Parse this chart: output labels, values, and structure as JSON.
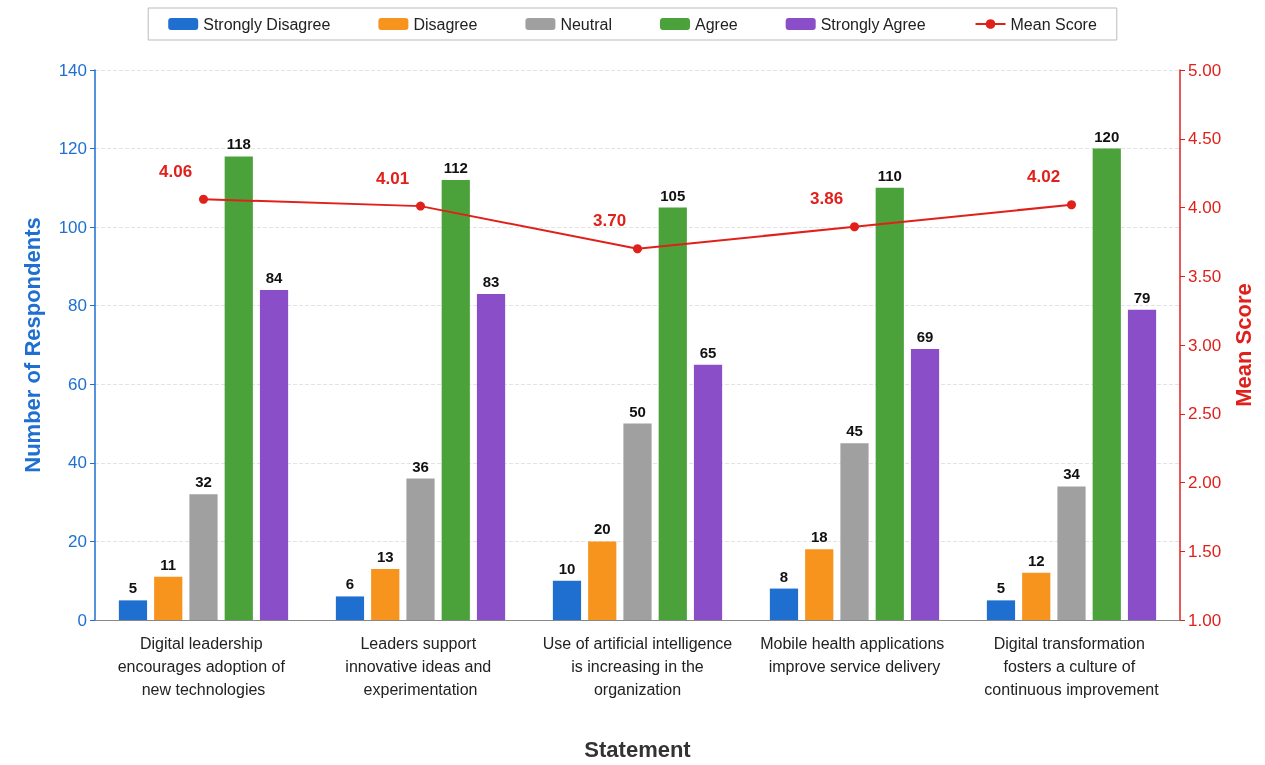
{
  "chart_data": {
    "type": "bar",
    "xlabel": "Statement",
    "ylabel": "Number of Respondents",
    "y2label": "Mean Score",
    "categories": [
      "Digital leadership encourages adoption of new technologies",
      "Leaders support innovative ideas and experimentation",
      "Use of artificial intelligence is increasing in the organization",
      "Mobile health applications improve service delivery",
      "Digital transformation fosters a culture of continuous improvement"
    ],
    "series": [
      {
        "name": "Strongly Disagree",
        "color": "#1f6fd1",
        "values": [
          5,
          6,
          10,
          8,
          5
        ]
      },
      {
        "name": "Disagree",
        "color": "#f7941d",
        "values": [
          11,
          13,
          20,
          18,
          12
        ]
      },
      {
        "name": "Neutral",
        "color": "#a0a0a0",
        "values": [
          32,
          36,
          50,
          45,
          34
        ]
      },
      {
        "name": "Agree",
        "color": "#4ca23a",
        "values": [
          118,
          112,
          105,
          110,
          120
        ]
      },
      {
        "name": "Strongly Agree",
        "color": "#8a4fc8",
        "values": [
          84,
          83,
          65,
          69,
          79
        ]
      },
      {
        "name": "Mean Score",
        "type": "line",
        "axis": "y2",
        "color": "#e0201b",
        "values": [
          4.06,
          4.01,
          3.7,
          3.86,
          4.02
        ],
        "value_labels": [
          "4.06",
          "4.01",
          "3.70",
          "3.86",
          "4.02"
        ]
      }
    ],
    "ylim": [
      0,
      140
    ],
    "yticks": [
      0,
      20,
      40,
      60,
      80,
      100,
      120,
      140
    ],
    "y2lim": [
      1,
      5
    ],
    "y2ticks": [
      {
        "value": 1,
        "label": "1.00"
      },
      {
        "value": 1.5,
        "label": "1.50"
      },
      {
        "value": 2,
        "label": "2.00"
      },
      {
        "value": 2.5,
        "label": "2.50"
      },
      {
        "value": 3,
        "label": "3.00"
      },
      {
        "value": 3.5,
        "label": "3.50"
      },
      {
        "value": 4,
        "label": "4.00"
      },
      {
        "value": 4.5,
        "label": "4.50"
      },
      {
        "value": 5,
        "label": "5.00"
      }
    ],
    "data_labels": true,
    "grid": "y",
    "legend": "top",
    "marker": "circle"
  }
}
